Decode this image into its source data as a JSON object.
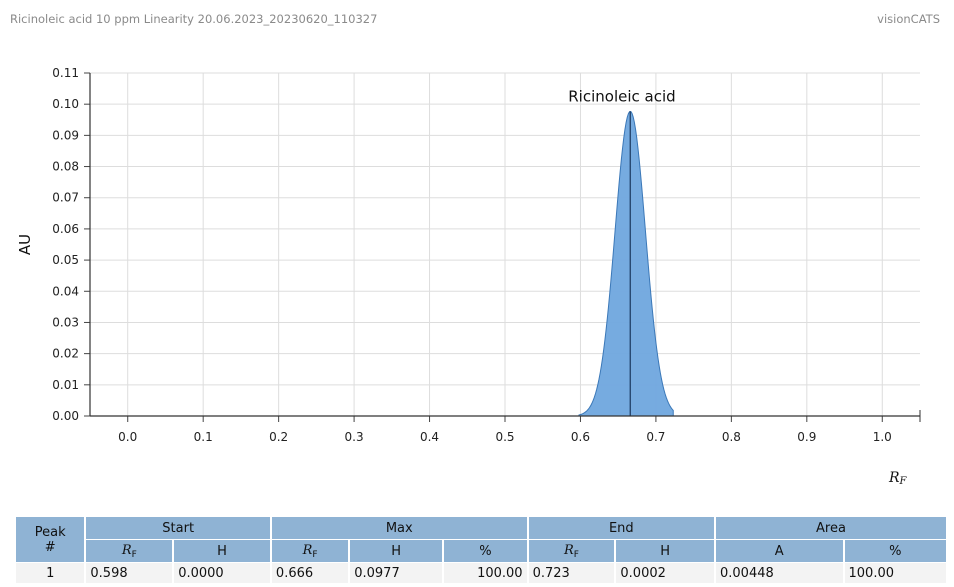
{
  "header": {
    "title": "Ricinoleic acid 10 ppm Linearity 20.06.2023_20230620_110327",
    "brand": "visionCATS"
  },
  "colors": {
    "peak_fill": "#6fa7de",
    "peak_stroke": "#3b78b8",
    "peak_line": "#1f3f66",
    "grid": "#dddddd",
    "table_header": "#8fb3d4",
    "table_row": "#f3f3f3"
  },
  "chart_data": {
    "type": "area",
    "ylabel": "AU",
    "xlabel": "RF",
    "xlabel_main": "R",
    "xlabel_sub": "F",
    "xlim": [
      -0.05,
      1.05
    ],
    "ylim": [
      0,
      0.11
    ],
    "x_ticks": [
      "0.0",
      "0.1",
      "0.2",
      "0.3",
      "0.4",
      "0.5",
      "0.6",
      "0.7",
      "0.8",
      "0.9",
      "1.0"
    ],
    "y_ticks": [
      "0.00",
      "0.01",
      "0.02",
      "0.03",
      "0.04",
      "0.05",
      "0.06",
      "0.07",
      "0.08",
      "0.09",
      "0.10",
      "0.11"
    ],
    "grid": true,
    "peak": {
      "label": "Ricinoleic acid",
      "rf_start": 0.598,
      "rf_max": 0.666,
      "rf_end": 0.723,
      "height": 0.0977
    }
  },
  "table": {
    "group_headers": [
      "Peak #",
      "Start",
      "Max",
      "End",
      "Area"
    ],
    "peak_header_line1": "Peak",
    "peak_header_line2": "#",
    "sub_headers": {
      "rf_main": "R",
      "rf_sub": "F",
      "h": "H",
      "pct": "%",
      "a": "A"
    },
    "rows": [
      {
        "peak": "1",
        "start_rf": "0.598",
        "start_h": "0.0000",
        "max_rf": "0.666",
        "max_h": "0.0977",
        "max_pct": "100.00",
        "end_rf": "0.723",
        "end_h": "0.0002",
        "area_a": "0.00448",
        "area_pct": "100.00"
      }
    ]
  }
}
